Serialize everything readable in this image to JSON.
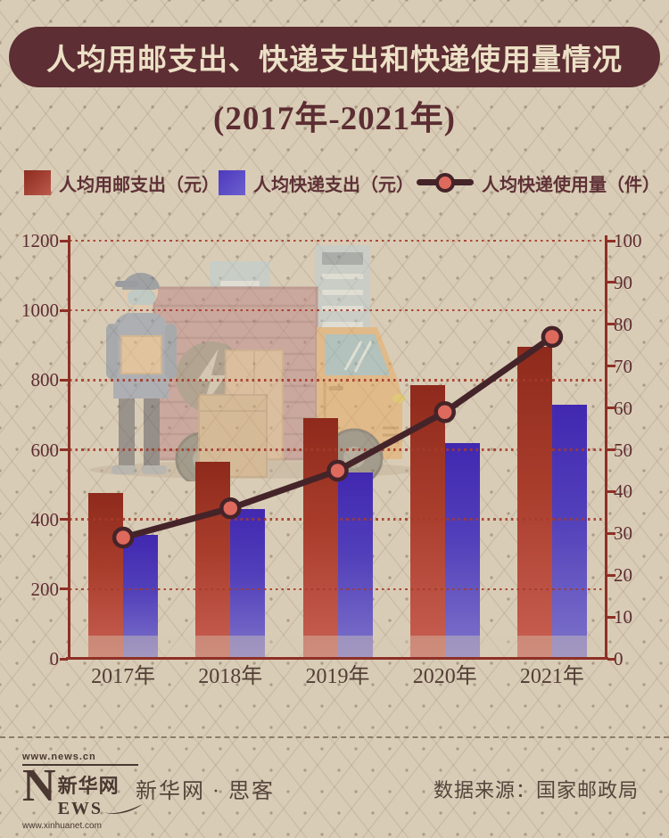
{
  "header": {
    "title": "人均用邮支出、快递支出和快递使用量情况",
    "subtitle": "(2017年-2021年)"
  },
  "legend": [
    {
      "label": "人均用邮支出（元）",
      "type": "bar",
      "color_top": "#8c2b1e",
      "color_bottom": "#bb5a4b"
    },
    {
      "label": "人均快递支出（元）",
      "type": "bar",
      "color_top": "#4d3abd",
      "color_bottom": "#6c5ecf"
    },
    {
      "label": "人均快递使用量（件）",
      "type": "line",
      "line_color": "#452429",
      "marker_fill": "#dd6a5d"
    }
  ],
  "chart_data": {
    "type": "combo",
    "categories": [
      "2017年",
      "2018年",
      "2019年",
      "2020年",
      "2021年"
    ],
    "series": [
      {
        "name": "人均用邮支出（元）",
        "type": "bar",
        "axis": "left",
        "values": [
          475,
          565,
          690,
          785,
          895
        ]
      },
      {
        "name": "人均快递支出（元）",
        "type": "bar",
        "axis": "left",
        "values": [
          355,
          430,
          535,
          620,
          730
        ]
      },
      {
        "name": "人均快递使用量（件）",
        "type": "line",
        "axis": "right",
        "values": [
          29,
          36,
          45,
          59,
          77
        ]
      }
    ],
    "left_axis": {
      "min": 0,
      "max": 1200,
      "ticks": [
        0,
        200,
        400,
        600,
        800,
        1000,
        1200
      ]
    },
    "right_axis": {
      "min": 0,
      "max": 100,
      "ticks": [
        0,
        10,
        20,
        30,
        40,
        50,
        60,
        70,
        80,
        90,
        100
      ]
    },
    "grid": "horizontal dotted lines at every 200 units of left axis",
    "legend_position": "top",
    "colors": {
      "grid": "#a63a2a",
      "axis": "#8e3026",
      "axis_label": "#5e2c32"
    }
  },
  "footer": {
    "logo": {
      "top_url": "www.news.cn",
      "n": "N",
      "cn": "新华网",
      "ews": "EWS",
      "bottom_url": "www.xinhuanet.com"
    },
    "brand": "新华网 · 思客",
    "source": "数据来源：国家邮政局"
  }
}
